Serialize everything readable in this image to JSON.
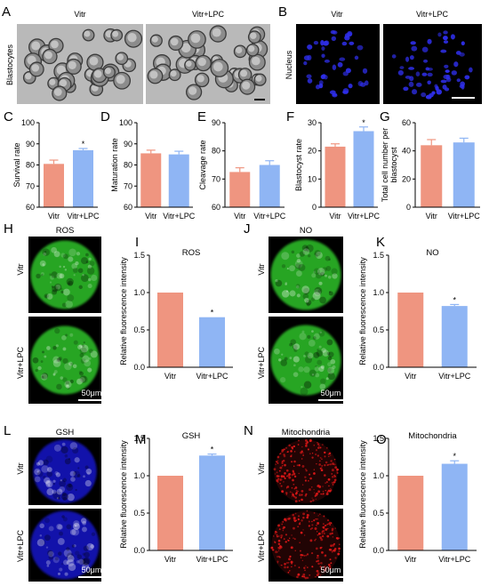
{
  "figure": {
    "panel_labels": [
      "A",
      "B",
      "C",
      "D",
      "E",
      "F",
      "G",
      "H",
      "I",
      "J",
      "K",
      "L",
      "M",
      "N",
      "O"
    ],
    "panel_A": {
      "col_labels": [
        "Vitr",
        "Vitr+LPC"
      ],
      "row_label": "Blastocytes"
    },
    "panel_B": {
      "col_labels": [
        "Vitr",
        "Vitr+LPC"
      ],
      "row_label": "Nucleus"
    },
    "panel_H": {
      "title": "ROS",
      "row_labels": [
        "Vitr",
        "Vitr+LPC"
      ],
      "scale_bar": "50μm"
    },
    "panel_J": {
      "title": "NO",
      "row_labels": [
        "Vitr",
        "Vitr+LPC"
      ],
      "scale_bar": "50μm"
    },
    "panel_L": {
      "title": "GSH",
      "row_labels": [
        "Vitr",
        "Vitr+LPC"
      ],
      "scale_bar": "50μm"
    },
    "panel_N": {
      "title": "Mitochondria",
      "row_labels": [
        "Vitr",
        "Vitr+LPC"
      ],
      "scale_bar": "50μm"
    },
    "colors": {
      "vitr": "#EF9580",
      "vitr_lpc": "#8FB5F4",
      "ros": "#2EC22A",
      "gsh": "#1414C8",
      "mito": "#E01818",
      "nucleus": "#2E2EE8"
    }
  },
  "chart_data": [
    {
      "panel": "C",
      "type": "bar",
      "categories": [
        "Vitr",
        "Vitr+LPC"
      ],
      "values": [
        80.5,
        87
      ],
      "errors": [
        1.8,
        0.8
      ],
      "ylabel": "Survival rate",
      "ylim": [
        60,
        100
      ],
      "yticks": [
        60,
        70,
        80,
        90,
        100
      ],
      "significance": [
        "",
        "*"
      ]
    },
    {
      "panel": "D",
      "type": "bar",
      "categories": [
        "Vitr",
        "Vitr+LPC"
      ],
      "values": [
        85.5,
        85
      ],
      "errors": [
        1.5,
        1.5
      ],
      "ylabel": "Maturation rate",
      "ylim": [
        60,
        100
      ],
      "yticks": [
        60,
        70,
        80,
        90,
        100
      ],
      "significance": [
        "",
        ""
      ]
    },
    {
      "panel": "E",
      "type": "bar",
      "categories": [
        "Vitr",
        "Vitr+LPC"
      ],
      "values": [
        72.5,
        75
      ],
      "errors": [
        1.5,
        1.5
      ],
      "ylabel": "Cleavage rate",
      "ylim": [
        60,
        90
      ],
      "yticks": [
        60,
        70,
        80,
        90
      ],
      "significance": [
        "",
        ""
      ]
    },
    {
      "panel": "F",
      "type": "bar",
      "categories": [
        "Vitr",
        "Vitr+LPC"
      ],
      "values": [
        21.5,
        27
      ],
      "errors": [
        1,
        1.5
      ],
      "ylabel": "Blastocyst rate",
      "ylim": [
        0,
        30
      ],
      "yticks": [
        0,
        10,
        20,
        30
      ],
      "significance": [
        "",
        "*"
      ]
    },
    {
      "panel": "G",
      "type": "bar",
      "categories": [
        "Vitr",
        "Vitr+LPC"
      ],
      "values": [
        44,
        46
      ],
      "errors": [
        4,
        3
      ],
      "ylabel": "Total cell number per blastocyst",
      "ylim": [
        0,
        60
      ],
      "yticks": [
        0,
        20,
        40,
        60
      ],
      "significance": [
        "",
        ""
      ]
    },
    {
      "panel": "I",
      "type": "bar",
      "title": "ROS",
      "categories": [
        "Vitr",
        "Vitr+LPC"
      ],
      "values": [
        1.0,
        0.67
      ],
      "errors": [
        0,
        0
      ],
      "ylabel": "Relative fluorescence intensity",
      "ylim": [
        0,
        1.5
      ],
      "yticks": [
        "0.0",
        "0.5",
        "1.0",
        "1.5"
      ],
      "significance": [
        "",
        "*"
      ]
    },
    {
      "panel": "K",
      "type": "bar",
      "title": "NO",
      "categories": [
        "Vitr",
        "Vitr+LPC"
      ],
      "values": [
        1.0,
        0.82
      ],
      "errors": [
        0,
        0.02
      ],
      "ylabel": "Relative fluorescence intensity",
      "ylim": [
        0,
        1.5
      ],
      "yticks": [
        "0.0",
        "0.5",
        "1.0",
        "1.5"
      ],
      "significance": [
        "",
        "*"
      ]
    },
    {
      "panel": "M",
      "type": "bar",
      "title": "GSH",
      "categories": [
        "Vitr",
        "Vitr+LPC"
      ],
      "values": [
        1.0,
        1.27
      ],
      "errors": [
        0,
        0.02
      ],
      "ylabel": "Relative fluorescence intensity",
      "ylim": [
        0,
        1.5
      ],
      "yticks": [
        "0.0",
        "0.5",
        "1.0",
        "1.5"
      ],
      "significance": [
        "",
        "*"
      ]
    },
    {
      "panel": "O",
      "type": "bar",
      "title": "Mitochondria",
      "categories": [
        "Vitr",
        "Vitr+LPC"
      ],
      "values": [
        1.0,
        1.16
      ],
      "errors": [
        0,
        0.04
      ],
      "ylabel": "Relative fluorescence intensity",
      "ylim": [
        0,
        1.5
      ],
      "yticks": [
        "0.0",
        "0.5",
        "1.0",
        "1.5"
      ],
      "significance": [
        "",
        "*"
      ]
    }
  ]
}
